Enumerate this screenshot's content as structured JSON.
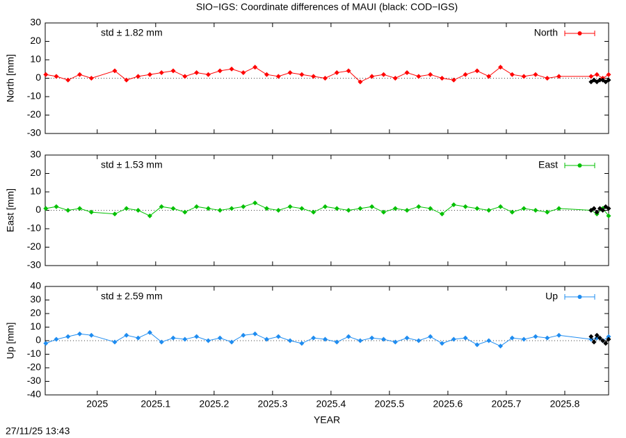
{
  "timestamp": "27/11/25 13:43",
  "chart_data": [
    {
      "type": "line",
      "title": "SIO−IGS: Coordinate differences of MAUI (black: COD−IGS)",
      "ylabel": "North [mm]",
      "annotation": "std ± 1.82 mm",
      "annotation_color": "#ff0000",
      "xlim": [
        2024.911,
        2025.875
      ],
      "ylim": [
        -30,
        30
      ],
      "yticks": [
        -30,
        -20,
        -10,
        0,
        10,
        20,
        30
      ],
      "legend": "upper right",
      "series": [
        {
          "name": "North",
          "color": "#ff0000",
          "x": [
            2024.912,
            2024.93,
            2024.95,
            2024.97,
            2024.99,
            2025.03,
            2025.05,
            2025.07,
            2025.09,
            2025.11,
            2025.13,
            2025.15,
            2025.17,
            2025.19,
            2025.21,
            2025.23,
            2025.25,
            2025.27,
            2025.29,
            2025.31,
            2025.33,
            2025.35,
            2025.37,
            2025.39,
            2025.41,
            2025.43,
            2025.45,
            2025.47,
            2025.49,
            2025.51,
            2025.53,
            2025.55,
            2025.57,
            2025.59,
            2025.61,
            2025.63,
            2025.65,
            2025.67,
            2025.69,
            2025.71,
            2025.73,
            2025.75,
            2025.77,
            2025.79,
            2025.845,
            2025.855,
            2025.865,
            2025.875
          ],
          "values": [
            2,
            1,
            -1,
            2,
            0,
            4,
            -1,
            1,
            2,
            3,
            4,
            1,
            3,
            2,
            4,
            5,
            3,
            6,
            2,
            1,
            3,
            2,
            1,
            0,
            3,
            4,
            -2,
            1,
            2,
            0,
            3,
            1,
            2,
            0,
            -1,
            2,
            4,
            1,
            6,
            2,
            1,
            2,
            0,
            1,
            1,
            2,
            0,
            2
          ]
        },
        {
          "color": "#000000",
          "x": [
            2025.845,
            2025.85,
            2025.855,
            2025.86,
            2025.865,
            2025.87,
            2025.875
          ],
          "values": [
            -2,
            -1,
            -2,
            -1,
            -1,
            -2,
            -1
          ]
        }
      ]
    },
    {
      "type": "line",
      "ylabel": "East [mm]",
      "annotation": "std ± 1.53 mm",
      "annotation_color": "#00c000",
      "xlim": [
        2024.911,
        2025.875
      ],
      "ylim": [
        -30,
        30
      ],
      "yticks": [
        -30,
        -20,
        -10,
        0,
        10,
        20,
        30
      ],
      "legend": "upper right",
      "series": [
        {
          "name": "East",
          "color": "#00c000",
          "x": [
            2024.912,
            2024.93,
            2024.95,
            2024.97,
            2024.99,
            2025.03,
            2025.05,
            2025.07,
            2025.09,
            2025.11,
            2025.13,
            2025.15,
            2025.17,
            2025.19,
            2025.21,
            2025.23,
            2025.25,
            2025.27,
            2025.29,
            2025.31,
            2025.33,
            2025.35,
            2025.37,
            2025.39,
            2025.41,
            2025.43,
            2025.45,
            2025.47,
            2025.49,
            2025.51,
            2025.53,
            2025.55,
            2025.57,
            2025.59,
            2025.61,
            2025.63,
            2025.65,
            2025.67,
            2025.69,
            2025.71,
            2025.73,
            2025.75,
            2025.77,
            2025.79,
            2025.845,
            2025.855,
            2025.865,
            2025.875
          ],
          "values": [
            1,
            2,
            0,
            1,
            -1,
            -2,
            1,
            0,
            -3,
            2,
            1,
            -1,
            2,
            1,
            0,
            1,
            2,
            4,
            1,
            0,
            2,
            1,
            -1,
            2,
            1,
            0,
            1,
            2,
            -1,
            1,
            0,
            2,
            1,
            -2,
            3,
            2,
            1,
            0,
            2,
            -1,
            1,
            0,
            -1,
            1,
            0,
            -2,
            1,
            -3
          ]
        },
        {
          "color": "#000000",
          "x": [
            2025.845,
            2025.85,
            2025.855,
            2025.86,
            2025.865,
            2025.87,
            2025.875
          ],
          "values": [
            0,
            1,
            -1,
            1,
            0,
            2,
            1
          ]
        }
      ]
    },
    {
      "type": "line",
      "ylabel": "Up [mm]",
      "xlabel": "YEAR",
      "annotation": "std ± 2.59 mm",
      "annotation_color": "#1e8cf0",
      "xlim": [
        2024.911,
        2025.875
      ],
      "ylim": [
        -40,
        40
      ],
      "yticks": [
        -40,
        -30,
        -20,
        -10,
        0,
        10,
        20,
        30,
        40
      ],
      "xticks": [
        2025,
        2025.1,
        2025.2,
        2025.3,
        2025.4,
        2025.5,
        2025.6,
        2025.7,
        2025.8
      ],
      "legend": "upper right",
      "series": [
        {
          "name": "Up",
          "color": "#1e8cf0",
          "x": [
            2024.912,
            2024.93,
            2024.95,
            2024.97,
            2024.99,
            2025.03,
            2025.05,
            2025.07,
            2025.09,
            2025.11,
            2025.13,
            2025.15,
            2025.17,
            2025.19,
            2025.21,
            2025.23,
            2025.25,
            2025.27,
            2025.29,
            2025.31,
            2025.33,
            2025.35,
            2025.37,
            2025.39,
            2025.41,
            2025.43,
            2025.45,
            2025.47,
            2025.49,
            2025.51,
            2025.53,
            2025.55,
            2025.57,
            2025.59,
            2025.61,
            2025.63,
            2025.65,
            2025.67,
            2025.69,
            2025.71,
            2025.73,
            2025.75,
            2025.77,
            2025.79,
            2025.845,
            2025.855,
            2025.865,
            2025.875
          ],
          "values": [
            -2,
            1,
            3,
            5,
            4,
            -1,
            4,
            2,
            6,
            -1,
            2,
            1,
            3,
            0,
            2,
            -1,
            4,
            5,
            1,
            3,
            0,
            -2,
            2,
            1,
            -1,
            3,
            0,
            2,
            1,
            -1,
            2,
            0,
            3,
            -2,
            1,
            2,
            -3,
            0,
            -4,
            2,
            1,
            3,
            2,
            4,
            1,
            2,
            0,
            3
          ]
        },
        {
          "color": "#000000",
          "x": [
            2025.845,
            2025.85,
            2025.855,
            2025.86,
            2025.865,
            2025.87,
            2025.875
          ],
          "values": [
            3,
            -1,
            4,
            2,
            0,
            -2,
            1
          ]
        }
      ]
    }
  ]
}
